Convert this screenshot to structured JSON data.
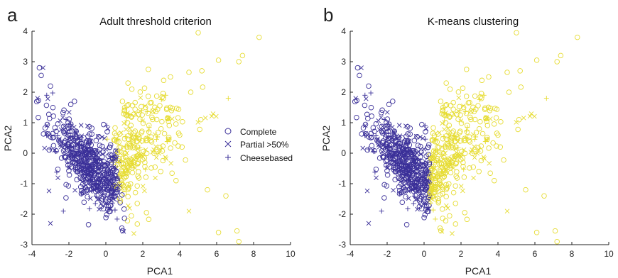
{
  "colors": {
    "navy": "#3b3099",
    "yellow": "#e6dc32"
  },
  "chart_data": [
    {
      "panel": "a",
      "type": "scatter",
      "title": "Adult threshold criterion",
      "xlabel": "PCA1",
      "ylabel": "PCA2",
      "xlim": [
        -4,
        10
      ],
      "ylim": [
        -3,
        4
      ],
      "xticks": [
        "-4",
        "-2",
        "0",
        "2",
        "4",
        "6",
        "8",
        "10"
      ],
      "yticks": [
        "-3",
        "-2",
        "-1",
        "0",
        "1",
        "2",
        "3",
        "4"
      ],
      "grid": false,
      "legend": {
        "placement": "center-right",
        "entries": [
          {
            "label": "Complete",
            "marker": "circle"
          },
          {
            "label": "Partial >50%",
            "marker": "x"
          },
          {
            "label": "Cheesebased",
            "marker": "plus"
          }
        ]
      },
      "series": [
        {
          "name": "Complete",
          "marker": "circle",
          "colors": [
            "navy",
            "yellow"
          ]
        },
        {
          "name": "Partial >50%",
          "marker": "x",
          "colors": [
            "navy",
            "yellow"
          ]
        },
        {
          "name": "Cheesebased",
          "marker": "plus",
          "colors": [
            "navy",
            "yellow"
          ]
        }
      ],
      "highlighted_points": [
        [
          -3.7,
          1.8
        ],
        [
          -3.6,
          2.8
        ],
        [
          -3.4,
          2.8
        ],
        [
          -3.5,
          2.55
        ],
        [
          -3.2,
          1.9
        ],
        [
          -3.0,
          2.2
        ],
        [
          -1.7,
          1.7
        ],
        [
          -1.9,
          1.6
        ],
        [
          8.3,
          3.8
        ],
        [
          7.4,
          3.2
        ],
        [
          5.0,
          3.95
        ],
        [
          6.1,
          3.05
        ],
        [
          2.3,
          2.75
        ],
        [
          3.5,
          2.5
        ],
        [
          4.5,
          2.65
        ],
        [
          5.2,
          2.7
        ],
        [
          7.2,
          3.0
        ],
        [
          0.9,
          1.7
        ],
        [
          -2.3,
          -1.9
        ],
        [
          -1.0,
          -1.2
        ],
        [
          -3.0,
          -2.3
        ],
        [
          0.6,
          -1.5
        ],
        [
          2.2,
          -1.95
        ],
        [
          1.7,
          -1.65
        ],
        [
          6.1,
          -2.6
        ],
        [
          7.1,
          -2.55
        ],
        [
          7.2,
          -2.9
        ],
        [
          5.5,
          -1.2
        ],
        [
          4.5,
          -1.9
        ],
        [
          3.8,
          -0.9
        ],
        [
          6.5,
          -1.4
        ],
        [
          1.2,
          2.3
        ]
      ]
    },
    {
      "panel": "b",
      "type": "scatter",
      "title": "K-means clustering",
      "xlabel": "PCA1",
      "ylabel": "PCA2",
      "xlim": [
        -4,
        10
      ],
      "ylim": [
        -3,
        4
      ],
      "xticks": [
        "-4",
        "-2",
        "0",
        "2",
        "4",
        "6",
        "8",
        "10"
      ],
      "yticks": [
        "-3",
        "-2",
        "-1",
        "0",
        "1",
        "2",
        "3",
        "4"
      ],
      "grid": false,
      "clusters": [
        {
          "color": "navy",
          "pca1_range": [
            -4,
            0.3
          ]
        },
        {
          "color": "yellow",
          "pca1_range": [
            0.3,
            8.5
          ]
        }
      ],
      "highlighted_points": [
        [
          -3.7,
          1.8
        ],
        [
          -3.6,
          2.8
        ],
        [
          -3.4,
          2.8
        ],
        [
          -3.5,
          2.55
        ],
        [
          -3.2,
          1.9
        ],
        [
          -3.0,
          2.2
        ],
        [
          -1.7,
          1.7
        ],
        [
          -1.9,
          1.6
        ],
        [
          8.3,
          3.8
        ],
        [
          7.4,
          3.2
        ],
        [
          5.0,
          3.95
        ],
        [
          6.1,
          3.05
        ],
        [
          2.3,
          2.75
        ],
        [
          3.5,
          2.5
        ],
        [
          4.5,
          2.65
        ],
        [
          5.2,
          2.7
        ],
        [
          7.2,
          3.0
        ],
        [
          0.9,
          1.7
        ],
        [
          -2.3,
          -1.9
        ],
        [
          -1.0,
          -1.2
        ],
        [
          -3.0,
          -2.3
        ],
        [
          0.6,
          -1.5
        ],
        [
          2.2,
          -1.95
        ],
        [
          1.7,
          -1.65
        ],
        [
          6.1,
          -2.6
        ],
        [
          7.1,
          -2.55
        ],
        [
          7.2,
          -2.9
        ],
        [
          5.5,
          -1.2
        ],
        [
          4.5,
          -1.9
        ],
        [
          3.8,
          -0.9
        ],
        [
          6.5,
          -1.4
        ],
        [
          1.2,
          2.3
        ]
      ]
    }
  ]
}
